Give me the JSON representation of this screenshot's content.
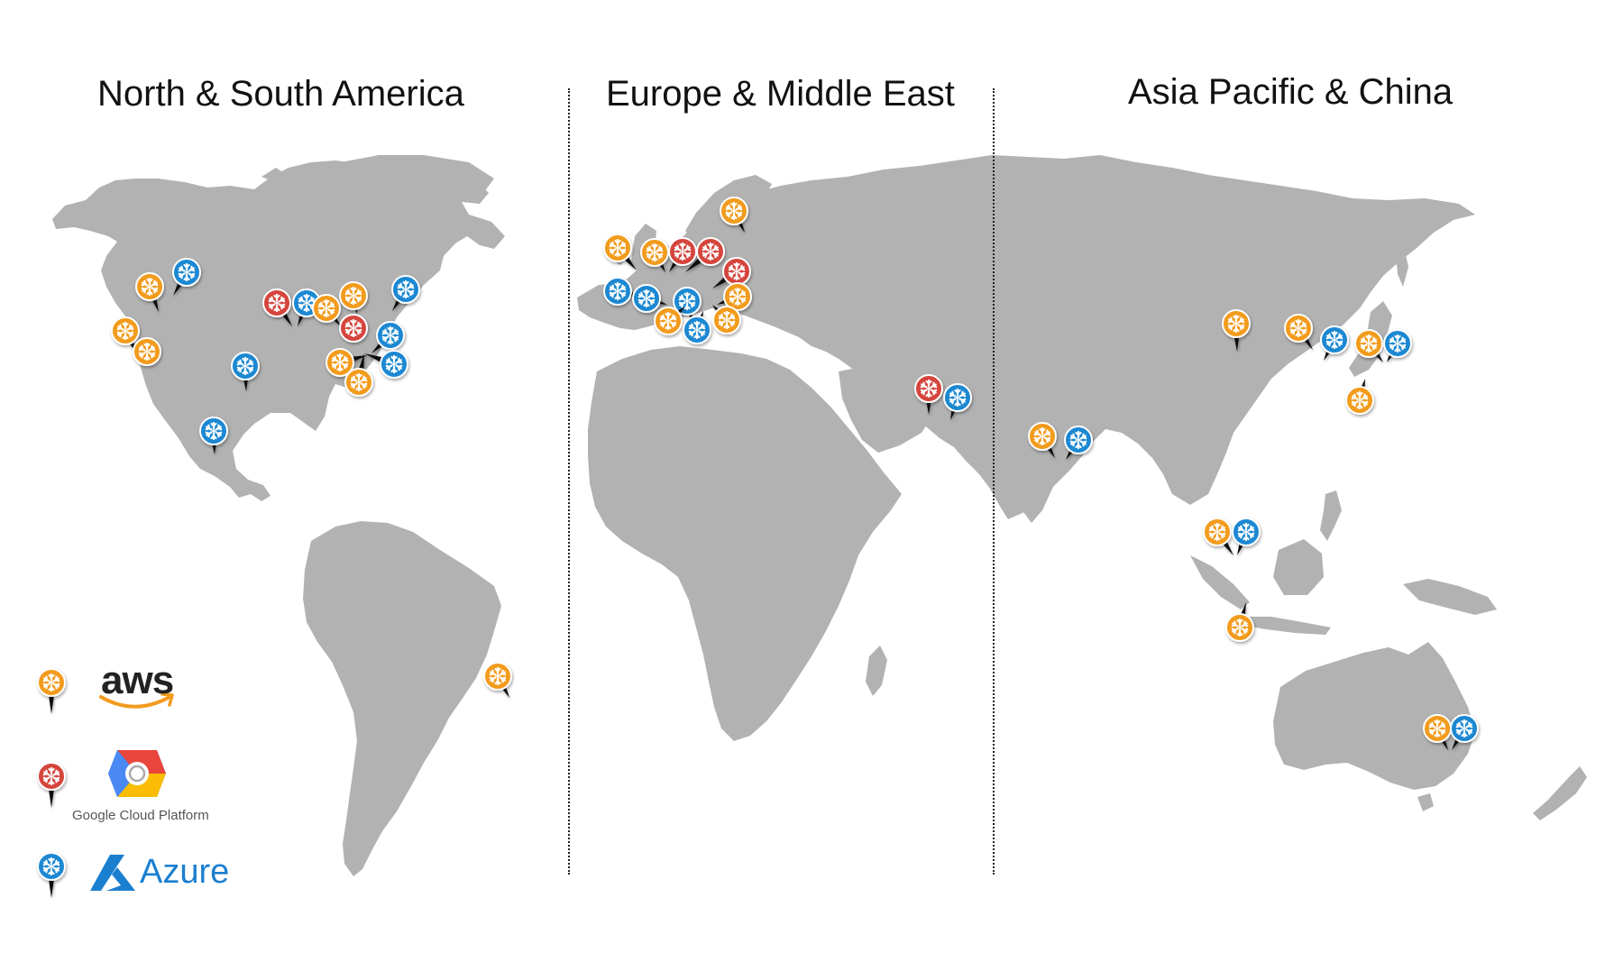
{
  "regions": {
    "americas": "North & South America",
    "emea": "Europe & Middle East",
    "apac": "Asia Pacific & China"
  },
  "legend": {
    "aws": {
      "label": "aws",
      "pin": "aws"
    },
    "gcp": {
      "label": "Google Cloud Platform",
      "pin": "gcp"
    },
    "azure": {
      "label": "Azure",
      "pin": "azure"
    }
  },
  "colors": {
    "aws": "#f29b1d",
    "gcp": "#d5443c",
    "azure": "#1a88d2",
    "land": "#b2b2b2",
    "aws_smile": "#f29b1d",
    "azure_logo": "#1b7fd0"
  },
  "icons": {
    "pin": "snowflake-pin-icon",
    "aws_logo": "aws-logo-icon",
    "gcp_logo": "google-cloud-hexagon-icon",
    "azure_logo": "azure-logo-icon"
  },
  "markers": [
    {
      "name": "us-west-aws-1",
      "provider": "aws"
    },
    {
      "name": "us-west-azure",
      "provider": "azure"
    },
    {
      "name": "us-west-aws-2",
      "provider": "aws"
    },
    {
      "name": "us-west-aws-3",
      "provider": "aws"
    },
    {
      "name": "us-central-gcp",
      "provider": "gcp"
    },
    {
      "name": "us-central-azure",
      "provider": "azure"
    },
    {
      "name": "us-east-aws-1",
      "provider": "aws"
    },
    {
      "name": "us-east-aws-2",
      "provider": "aws"
    },
    {
      "name": "us-east-gcp",
      "provider": "gcp"
    },
    {
      "name": "canada-azure",
      "provider": "azure"
    },
    {
      "name": "us-east-azure-1",
      "provider": "azure"
    },
    {
      "name": "us-east-aws-3",
      "provider": "aws"
    },
    {
      "name": "us-east-azure-2",
      "provider": "azure"
    },
    {
      "name": "us-east-aws-4",
      "provider": "aws"
    },
    {
      "name": "us-south-azure",
      "provider": "azure"
    },
    {
      "name": "mexico-azure",
      "provider": "azure"
    },
    {
      "name": "brazil-aws",
      "provider": "aws"
    },
    {
      "name": "sweden-aws",
      "provider": "aws"
    },
    {
      "name": "ireland-aws",
      "provider": "aws"
    },
    {
      "name": "london-aws",
      "provider": "aws"
    },
    {
      "name": "london-gcp",
      "provider": "gcp"
    },
    {
      "name": "netherlands-gcp",
      "provider": "gcp"
    },
    {
      "name": "poland-gcp",
      "provider": "gcp"
    },
    {
      "name": "ireland-azure",
      "provider": "azure"
    },
    {
      "name": "uk-azure",
      "provider": "azure"
    },
    {
      "name": "netherlands-azure",
      "provider": "azure"
    },
    {
      "name": "germany-aws",
      "provider": "aws"
    },
    {
      "name": "paris-aws",
      "provider": "aws"
    },
    {
      "name": "switzerland-azure",
      "provider": "azure"
    },
    {
      "name": "italy-aws",
      "provider": "aws"
    },
    {
      "name": "middle-east-gcp",
      "provider": "gcp"
    },
    {
      "name": "uae-azure",
      "provider": "azure"
    },
    {
      "name": "india-aws",
      "provider": "aws"
    },
    {
      "name": "india-azure",
      "provider": "azure"
    },
    {
      "name": "china-aws",
      "provider": "aws"
    },
    {
      "name": "korea-aws",
      "provider": "aws"
    },
    {
      "name": "korea-azure",
      "provider": "azure"
    },
    {
      "name": "tokyo-aws",
      "provider": "aws"
    },
    {
      "name": "tokyo-azure",
      "provider": "azure"
    },
    {
      "name": "osaka-aws",
      "provider": "aws"
    },
    {
      "name": "singapore-aws",
      "provider": "aws"
    },
    {
      "name": "singapore-azure",
      "provider": "azure"
    },
    {
      "name": "jakarta-aws",
      "provider": "aws"
    },
    {
      "name": "sydney-aws",
      "provider": "aws"
    },
    {
      "name": "sydney-azure",
      "provider": "azure"
    }
  ]
}
